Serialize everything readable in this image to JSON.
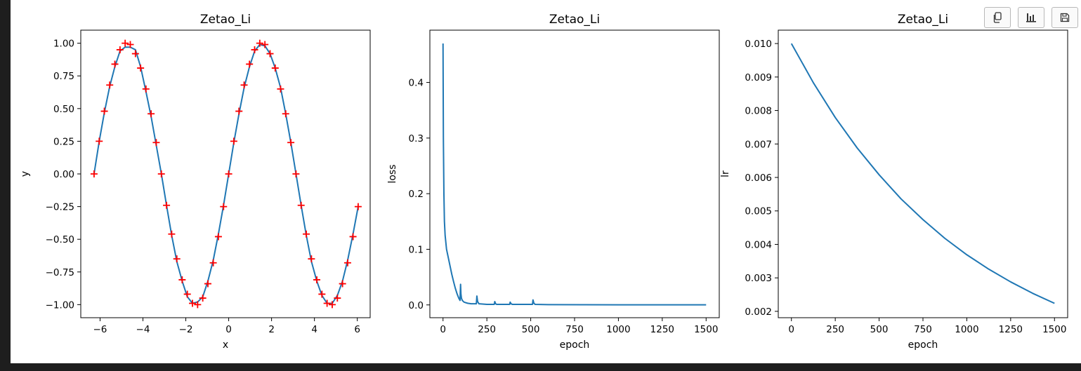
{
  "toolbar": {
    "copy_icon": "copy-icon",
    "chart_icon": "bar-chart-icon",
    "save_icon": "save-icon"
  },
  "chart_data": [
    {
      "type": "line",
      "title": "Zetao_Li",
      "xlabel": "x",
      "ylabel": "y",
      "xlim": [
        -6.9,
        6.6
      ],
      "ylim": [
        -1.1,
        1.1
      ],
      "xticks": [
        -6,
        -4,
        -2,
        0,
        2,
        4,
        6
      ],
      "xtick_labels": [
        "−6",
        "−4",
        "−2",
        "0",
        "2",
        "4",
        "6"
      ],
      "yticks": [
        1.0,
        0.75,
        0.5,
        0.25,
        0.0,
        -0.25,
        -0.5,
        -0.75,
        -1.0
      ],
      "ytick_labels": [
        "1.00",
        "0.75",
        "0.50",
        "0.25",
        "0.00",
        "−0.25",
        "−0.50",
        "−0.75",
        "−1.00"
      ],
      "series": [
        {
          "kind": "line",
          "color": "#1f77b4",
          "x": [
            -6.28,
            -6.04,
            -5.8,
            -5.55,
            -5.31,
            -5.07,
            -4.83,
            -4.59,
            -4.35,
            -4.11,
            -3.86,
            -3.62,
            -3.38,
            -3.14,
            -2.9,
            -2.66,
            -2.42,
            -2.17,
            -1.93,
            -1.69,
            -1.45,
            -1.21,
            -0.97,
            -0.72,
            -0.48,
            -0.24,
            0.0,
            0.24,
            0.48,
            0.72,
            0.97,
            1.21,
            1.45,
            1.69,
            1.93,
            2.17,
            2.42,
            2.66,
            2.9,
            3.14,
            3.38,
            3.62,
            3.86,
            4.11,
            4.35,
            4.59,
            4.83,
            5.07,
            5.31,
            5.55,
            5.8,
            6.04
          ],
          "y": [
            0.0,
            0.25,
            0.47,
            0.67,
            0.82,
            0.94,
            0.97,
            0.97,
            0.95,
            0.82,
            0.63,
            0.44,
            0.22,
            0.0,
            -0.24,
            -0.47,
            -0.67,
            -0.82,
            -0.94,
            -0.99,
            -0.98,
            -0.94,
            -0.82,
            -0.66,
            -0.46,
            -0.24,
            0.0,
            0.24,
            0.46,
            0.66,
            0.82,
            0.94,
            0.99,
            0.98,
            0.92,
            0.81,
            0.66,
            0.46,
            0.24,
            0.0,
            -0.24,
            -0.47,
            -0.67,
            -0.82,
            -0.93,
            -0.99,
            -0.99,
            -0.93,
            -0.82,
            -0.66,
            -0.46,
            -0.25
          ]
        },
        {
          "kind": "scatter",
          "marker": "+",
          "color": "#ff0000",
          "x": [
            -6.28,
            -6.04,
            -5.8,
            -5.55,
            -5.31,
            -5.07,
            -4.83,
            -4.59,
            -4.35,
            -4.11,
            -3.86,
            -3.62,
            -3.38,
            -3.14,
            -2.9,
            -2.66,
            -2.42,
            -2.17,
            -1.93,
            -1.69,
            -1.45,
            -1.21,
            -0.97,
            -0.72,
            -0.48,
            -0.24,
            0.0,
            0.24,
            0.48,
            0.72,
            0.97,
            1.21,
            1.45,
            1.69,
            1.93,
            2.17,
            2.42,
            2.66,
            2.9,
            3.14,
            3.38,
            3.62,
            3.86,
            4.11,
            4.35,
            4.59,
            4.83,
            5.07,
            5.31,
            5.55,
            5.8,
            6.04
          ],
          "y": [
            0.0,
            0.25,
            0.48,
            0.68,
            0.84,
            0.95,
            1.0,
            0.99,
            0.92,
            0.81,
            0.65,
            0.46,
            0.24,
            0.0,
            -0.24,
            -0.46,
            -0.65,
            -0.81,
            -0.92,
            -0.99,
            -1.0,
            -0.95,
            -0.84,
            -0.68,
            -0.48,
            -0.25,
            0.0,
            0.25,
            0.48,
            0.68,
            0.84,
            0.95,
            1.0,
            0.99,
            0.92,
            0.81,
            0.65,
            0.46,
            0.24,
            0.0,
            -0.24,
            -0.46,
            -0.65,
            -0.81,
            -0.92,
            -0.99,
            -1.0,
            -0.95,
            -0.84,
            -0.68,
            -0.48,
            -0.25
          ]
        }
      ]
    },
    {
      "type": "line",
      "title": "Zetao_Li",
      "xlabel": "epoch",
      "ylabel": "loss",
      "xlim": [
        -75,
        1575
      ],
      "ylim": [
        -0.023,
        0.494
      ],
      "xticks": [
        0,
        250,
        500,
        750,
        1000,
        1250,
        1500
      ],
      "xtick_labels": [
        "0",
        "250",
        "500",
        "750",
        "1000",
        "1250",
        "1500"
      ],
      "yticks": [
        0.0,
        0.1,
        0.2,
        0.3,
        0.4
      ],
      "ytick_labels": [
        "0.0",
        "0.1",
        "0.2",
        "0.3",
        "0.4"
      ],
      "series": [
        {
          "kind": "line",
          "color": "#1f77b4",
          "x": [
            0,
            2,
            5,
            8,
            12,
            20,
            30,
            40,
            50,
            60,
            70,
            80,
            90,
            97,
            100,
            102,
            105,
            110,
            120,
            140,
            160,
            180,
            190,
            193,
            197,
            205,
            250,
            292,
            295,
            300,
            305,
            350,
            380,
            383,
            388,
            395,
            450,
            510,
            513,
            518,
            525,
            600,
            800,
            1000,
            1200,
            1400,
            1500
          ],
          "y": [
            0.47,
            0.3,
            0.2,
            0.15,
            0.125,
            0.1,
            0.085,
            0.07,
            0.055,
            0.042,
            0.03,
            0.02,
            0.012,
            0.008,
            0.037,
            0.02,
            0.012,
            0.008,
            0.005,
            0.003,
            0.002,
            0.002,
            0.002,
            0.016,
            0.006,
            0.002,
            0.001,
            0.001,
            0.006,
            0.002,
            0.001,
            0.001,
            0.001,
            0.005,
            0.002,
            0.001,
            0.001,
            0.001,
            0.009,
            0.003,
            0.001,
            0.0005,
            0.0003,
            0.0002,
            0.0002,
            0.0002,
            0.0002
          ]
        }
      ]
    },
    {
      "type": "line",
      "title": "Zetao_Li",
      "xlabel": "epoch",
      "ylabel": "lr",
      "xlim": [
        -75,
        1575
      ],
      "ylim": [
        0.00181,
        0.0104
      ],
      "xticks": [
        0,
        250,
        500,
        750,
        1000,
        1250,
        1500
      ],
      "xtick_labels": [
        "0",
        "250",
        "500",
        "750",
        "1000",
        "1250",
        "1500"
      ],
      "yticks": [
        0.01,
        0.009,
        0.008,
        0.007,
        0.006,
        0.005,
        0.004,
        0.003,
        0.002
      ],
      "ytick_labels": [
        "0.010",
        "0.009",
        "0.008",
        "0.007",
        "0.006",
        "0.005",
        "0.004",
        "0.003",
        "0.002"
      ],
      "series": [
        {
          "kind": "line",
          "color": "#1f77b4",
          "x": [
            0,
            125,
            250,
            375,
            500,
            625,
            750,
            875,
            1000,
            1125,
            1250,
            1375,
            1500
          ],
          "y": [
            0.01,
            0.00883,
            0.00779,
            0.00688,
            0.00608,
            0.00536,
            0.00474,
            0.00418,
            0.00369,
            0.00326,
            0.00288,
            0.00254,
            0.00224
          ]
        }
      ]
    }
  ]
}
